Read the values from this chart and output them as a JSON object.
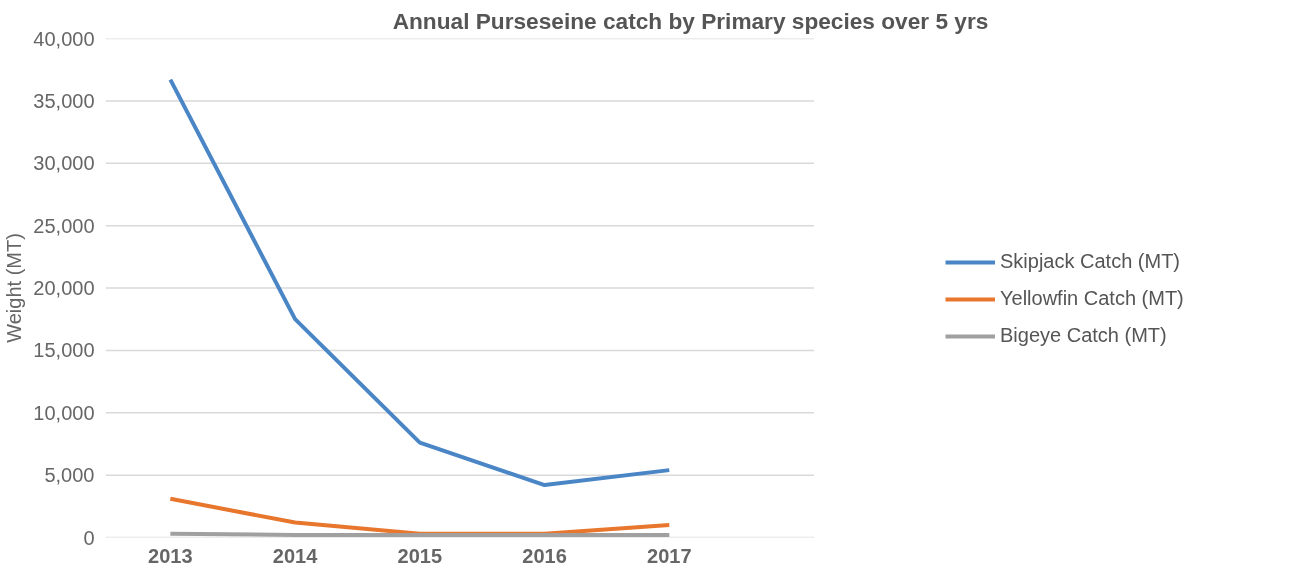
{
  "chart_data": {
    "type": "line",
    "title": "Annual Purseseine catch by Primary species over 5 yrs",
    "ylabel": "Weight (MT)",
    "categories": [
      "2013",
      "2014",
      "2015",
      "2016",
      "2017"
    ],
    "series": [
      {
        "name": "Skipjack Catch (MT)",
        "color": "#4a86c5",
        "values": [
          36700,
          17500,
          7600,
          4200,
          5400
        ]
      },
      {
        "name": "Yellowfin Catch (MT)",
        "color": "#e8762d",
        "values": [
          3100,
          1200,
          300,
          300,
          1000
        ]
      },
      {
        "name": "Bigeye Catch (MT)",
        "color": "#a0a0a0",
        "values": [
          300,
          200,
          200,
          200,
          200
        ]
      }
    ],
    "ylim": [
      0,
      40000
    ],
    "yticks": [
      {
        "value": 0,
        "label": "0"
      },
      {
        "value": 5000,
        "label": "5,000"
      },
      {
        "value": 10000,
        "label": "10,000"
      },
      {
        "value": 15000,
        "label": "15,000"
      },
      {
        "value": 20000,
        "label": "20,000"
      },
      {
        "value": 25000,
        "label": "25,000"
      },
      {
        "value": 30000,
        "label": "30,000"
      },
      {
        "value": 35000,
        "label": "35,000"
      },
      {
        "value": 40000,
        "label": "40,000"
      }
    ],
    "grid": "y",
    "legend": "right",
    "marker": "none",
    "line_style": "solid"
  }
}
